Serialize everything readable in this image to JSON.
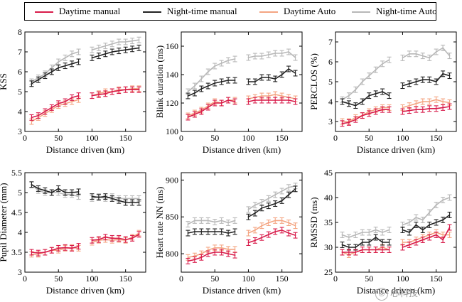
{
  "legend": {
    "items": [
      {
        "label": "Daytime manual",
        "color": "#d81b4a"
      },
      {
        "label": "Night-time manual",
        "color": "#222222"
      },
      {
        "label": "Daytime Auto",
        "color": "#f4a582"
      },
      {
        "label": "Night-time Auto",
        "color": "#b8b8b8"
      }
    ]
  },
  "watermark": {
    "text": "心科技",
    "icon": "wechat-icon"
  },
  "chart_data": [
    {
      "type": "line",
      "title": "",
      "xlabel": "Distance driven (km)",
      "ylabel": "KSS",
      "xlim": [
        0,
        180
      ],
      "ylim": [
        3,
        8
      ],
      "xticks": [
        0,
        50,
        100,
        150
      ],
      "yticks": [
        3,
        4,
        5,
        6,
        7,
        8
      ],
      "series": [
        {
          "name": "Daytime manual",
          "color": "#d81b4a",
          "x": [
            10,
            20,
            30,
            40,
            50,
            60,
            70,
            80,
            100,
            110,
            120,
            130,
            140,
            150,
            160,
            170
          ],
          "y": [
            3.7,
            3.8,
            4.0,
            4.2,
            4.4,
            4.5,
            4.7,
            4.8,
            4.8,
            4.85,
            4.9,
            5.0,
            5.05,
            5.1,
            5.1,
            5.1
          ]
        },
        {
          "name": "Night-time manual",
          "color": "#222222",
          "x": [
            10,
            20,
            30,
            40,
            50,
            60,
            70,
            80,
            100,
            110,
            120,
            130,
            140,
            150,
            160,
            170
          ],
          "y": [
            5.4,
            5.6,
            5.8,
            6.0,
            6.2,
            6.3,
            6.4,
            6.5,
            6.7,
            6.8,
            6.9,
            7.0,
            7.05,
            7.1,
            7.15,
            7.2
          ]
        },
        {
          "name": "Daytime Auto",
          "color": "#f4a582",
          "x": [
            10,
            20,
            30,
            40,
            50,
            60,
            70,
            80,
            100,
            110,
            120,
            130,
            140,
            150,
            160,
            170
          ],
          "y": [
            3.5,
            3.7,
            3.9,
            4.1,
            4.3,
            4.4,
            4.5,
            4.6,
            4.8,
            4.9,
            5.0,
            5.0,
            5.1,
            5.1,
            5.15,
            5.15
          ]
        },
        {
          "name": "Night-time Auto",
          "color": "#b8b8b8",
          "x": [
            10,
            20,
            30,
            40,
            50,
            60,
            70,
            80,
            100,
            110,
            120,
            130,
            140,
            150,
            160,
            170
          ],
          "y": [
            5.5,
            5.7,
            5.9,
            6.2,
            6.5,
            6.7,
            6.9,
            7.0,
            7.1,
            7.2,
            7.3,
            7.4,
            7.5,
            7.5,
            7.55,
            7.6
          ]
        }
      ]
    },
    {
      "type": "line",
      "title": "",
      "xlabel": "Distance driven (km)",
      "ylabel": "Blink duration (ms)",
      "xlim": [
        0,
        180
      ],
      "ylim": [
        100,
        170
      ],
      "xticks": [
        0,
        50,
        100,
        150
      ],
      "yticks": [
        100,
        120,
        140,
        160
      ],
      "series": [
        {
          "name": "Daytime manual",
          "color": "#d81b4a",
          "x": [
            10,
            20,
            30,
            40,
            50,
            60,
            70,
            80,
            100,
            110,
            120,
            130,
            140,
            150,
            160,
            170
          ],
          "y": [
            110,
            112,
            114,
            117,
            120,
            120,
            122,
            121,
            121,
            122,
            122,
            122,
            122,
            122,
            122,
            121
          ]
        },
        {
          "name": "Night-time manual",
          "color": "#222222",
          "x": [
            10,
            20,
            30,
            40,
            50,
            60,
            70,
            80,
            100,
            110,
            120,
            130,
            140,
            150,
            160,
            170
          ],
          "y": [
            125,
            127,
            130,
            132,
            134,
            135,
            136,
            136,
            135,
            135,
            138,
            138,
            137,
            140,
            144,
            141
          ]
        },
        {
          "name": "Daytime Auto",
          "color": "#f4a582",
          "x": [
            10,
            20,
            30,
            40,
            50,
            60,
            70,
            80,
            100,
            110,
            120,
            130,
            140,
            150,
            160,
            170
          ],
          "y": [
            111,
            113,
            115,
            118,
            121,
            120,
            122,
            122,
            123,
            124,
            125,
            125,
            126,
            125,
            124,
            123
          ]
        },
        {
          "name": "Night-time Auto",
          "color": "#b8b8b8",
          "x": [
            10,
            20,
            30,
            40,
            50,
            60,
            70,
            80,
            100,
            110,
            120,
            130,
            140,
            150,
            160,
            170
          ],
          "y": [
            128,
            132,
            137,
            142,
            146,
            148,
            150,
            151,
            152,
            153,
            153,
            154,
            155,
            155,
            156,
            152
          ]
        }
      ]
    },
    {
      "type": "line",
      "title": "",
      "xlabel": "Distance driven (km)",
      "ylabel": "PERCLOS (%)",
      "xlim": [
        0,
        180
      ],
      "ylim": [
        2.5,
        7.5
      ],
      "xticks": [
        0,
        50,
        100,
        150
      ],
      "yticks": [
        3,
        4,
        5,
        6,
        7
      ],
      "series": [
        {
          "name": "Daytime manual",
          "color": "#d81b4a",
          "x": [
            10,
            20,
            30,
            40,
            50,
            60,
            70,
            80,
            100,
            110,
            120,
            130,
            140,
            150,
            160,
            170
          ],
          "y": [
            2.9,
            2.95,
            3.1,
            3.3,
            3.4,
            3.5,
            3.6,
            3.6,
            3.5,
            3.55,
            3.6,
            3.6,
            3.65,
            3.65,
            3.7,
            3.75
          ]
        },
        {
          "name": "Night-time manual",
          "color": "#222222",
          "x": [
            10,
            20,
            30,
            40,
            50,
            60,
            70,
            80,
            100,
            110,
            120,
            130,
            140,
            150,
            160,
            170
          ],
          "y": [
            4.0,
            3.9,
            3.8,
            4.0,
            4.3,
            4.4,
            4.5,
            4.3,
            4.8,
            4.9,
            5.0,
            5.1,
            5.1,
            5.0,
            5.4,
            5.3
          ]
        },
        {
          "name": "Daytime Auto",
          "color": "#f4a582",
          "x": [
            10,
            20,
            30,
            40,
            50,
            60,
            70,
            80,
            100,
            110,
            120,
            130,
            140,
            150,
            160,
            170
          ],
          "y": [
            3.0,
            3.0,
            3.2,
            3.3,
            3.5,
            3.6,
            3.7,
            3.7,
            3.7,
            3.8,
            3.9,
            4.0,
            4.0,
            4.1,
            4.0,
            3.95
          ]
        },
        {
          "name": "Night-time Auto",
          "color": "#b8b8b8",
          "x": [
            10,
            20,
            30,
            40,
            50,
            60,
            70,
            80,
            100,
            110,
            120,
            130,
            140,
            150,
            160,
            170
          ],
          "y": [
            4.1,
            4.3,
            4.6,
            5.0,
            5.3,
            5.6,
            5.9,
            6.1,
            6.2,
            6.4,
            6.4,
            6.3,
            6.2,
            6.5,
            6.7,
            6.3
          ]
        }
      ]
    },
    {
      "type": "line",
      "title": "",
      "xlabel": "Distance driven (km)",
      "ylabel": "Pupil Diameter (mm)",
      "xlim": [
        0,
        180
      ],
      "ylim": [
        3.0,
        5.5
      ],
      "xticks": [
        0,
        50,
        100,
        150
      ],
      "yticks": [
        3,
        3.5,
        4,
        4.5,
        5,
        5.5
      ],
      "series": [
        {
          "name": "Daytime manual",
          "color": "#d81b4a",
          "x": [
            10,
            20,
            30,
            40,
            50,
            60,
            70,
            80,
            100,
            110,
            120,
            130,
            140,
            150,
            160,
            170
          ],
          "y": [
            3.5,
            3.48,
            3.5,
            3.55,
            3.6,
            3.62,
            3.6,
            3.65,
            3.8,
            3.82,
            3.88,
            3.85,
            3.85,
            3.82,
            3.85,
            3.95
          ]
        },
        {
          "name": "Night-time manual",
          "color": "#222222",
          "x": [
            10,
            20,
            30,
            40,
            50,
            60,
            70,
            80,
            100,
            110,
            120,
            130,
            140,
            150,
            160,
            170
          ],
          "y": [
            5.2,
            5.1,
            5.05,
            5.0,
            5.1,
            5.0,
            5.0,
            5.02,
            4.9,
            4.88,
            4.9,
            4.85,
            4.8,
            4.75,
            4.75,
            4.75
          ]
        },
        {
          "name": "Daytime Auto",
          "color": "#f4a582",
          "x": [
            10,
            20,
            30,
            40,
            50,
            60,
            70,
            80,
            100,
            110,
            120,
            130,
            140,
            150,
            160,
            170
          ],
          "y": [
            3.45,
            3.45,
            3.5,
            3.55,
            3.55,
            3.6,
            3.62,
            3.6,
            3.75,
            3.8,
            3.82,
            3.8,
            3.82,
            3.8,
            3.88,
            3.98
          ]
        },
        {
          "name": "Night-time Auto",
          "color": "#b8b8b8",
          "x": [
            10,
            20,
            30,
            40,
            50,
            60,
            70,
            80,
            100,
            110,
            120,
            130,
            140,
            150,
            160,
            170
          ],
          "y": [
            5.2,
            5.05,
            5.0,
            5.0,
            5.0,
            4.95,
            4.95,
            4.9,
            4.85,
            4.9,
            4.85,
            4.9,
            4.85,
            4.85,
            4.85,
            4.85
          ]
        }
      ]
    },
    {
      "type": "line",
      "title": "",
      "xlabel": "Distance driven (km)",
      "ylabel": "Heart rate NN (ms)",
      "xlim": [
        0,
        180
      ],
      "ylim": [
        775,
        910
      ],
      "xticks": [
        0,
        50,
        100,
        150
      ],
      "yticks": [
        800,
        850,
        900
      ],
      "series": [
        {
          "name": "Daytime manual",
          "color": "#d81b4a",
          "x": [
            10,
            20,
            30,
            40,
            50,
            60,
            70,
            80,
            100,
            110,
            120,
            130,
            140,
            150,
            160,
            170
          ],
          "y": [
            790,
            792,
            795,
            800,
            802,
            802,
            800,
            798,
            815,
            818,
            822,
            826,
            830,
            832,
            828,
            825
          ]
        },
        {
          "name": "Night-time manual",
          "color": "#222222",
          "x": [
            10,
            20,
            30,
            40,
            50,
            60,
            70,
            80,
            100,
            110,
            120,
            130,
            140,
            150,
            160,
            170
          ],
          "y": [
            828,
            830,
            830,
            830,
            830,
            830,
            828,
            830,
            850,
            855,
            862,
            865,
            868,
            872,
            880,
            888
          ]
        },
        {
          "name": "Daytime Auto",
          "color": "#f4a582",
          "x": [
            10,
            20,
            30,
            40,
            50,
            60,
            70,
            80,
            100,
            110,
            120,
            130,
            140,
            150,
            160,
            170
          ],
          "y": [
            795,
            797,
            800,
            805,
            808,
            808,
            806,
            806,
            828,
            832,
            838,
            842,
            845,
            845,
            842,
            838
          ]
        },
        {
          "name": "Night-time Auto",
          "color": "#b8b8b8",
          "x": [
            10,
            20,
            30,
            40,
            50,
            60,
            70,
            80,
            100,
            110,
            120,
            130,
            140,
            150,
            160,
            170
          ],
          "y": [
            840,
            845,
            845,
            845,
            843,
            845,
            842,
            845,
            860,
            866,
            870,
            875,
            880,
            885,
            890,
            892
          ]
        }
      ]
    },
    {
      "type": "line",
      "title": "",
      "xlabel": "Distance driven (km)",
      "ylabel": "RMSSD (ms)",
      "xlim": [
        0,
        180
      ],
      "ylim": [
        25,
        45
      ],
      "xticks": [
        0,
        50,
        100,
        150
      ],
      "yticks": [
        25,
        30,
        35,
        40,
        45
      ],
      "series": [
        {
          "name": "Daytime manual",
          "color": "#d81b4a",
          "x": [
            10,
            20,
            30,
            40,
            50,
            60,
            70,
            80,
            100,
            110,
            120,
            130,
            140,
            150,
            160,
            170
          ],
          "y": [
            29.0,
            29.0,
            29.0,
            29.5,
            29.5,
            29.5,
            29.5,
            29.5,
            30.0,
            30.5,
            31.0,
            31.5,
            32.0,
            32.5,
            31.5,
            34.0
          ]
        },
        {
          "name": "Night-time manual",
          "color": "#222222",
          "x": [
            10,
            20,
            30,
            40,
            50,
            60,
            70,
            80,
            100,
            110,
            120,
            130,
            140,
            150,
            160,
            170
          ],
          "y": [
            30.5,
            30.0,
            30.0,
            31.0,
            31.0,
            32.0,
            31.0,
            31.0,
            33.5,
            33.0,
            34.5,
            33.5,
            34.5,
            35.0,
            35.5,
            36.5
          ]
        },
        {
          "name": "Daytime Auto",
          "color": "#f4a582",
          "x": [
            10,
            20,
            30,
            40,
            50,
            60,
            70,
            80,
            100,
            110,
            120,
            130,
            140,
            150,
            160,
            170
          ],
          "y": [
            29.0,
            28.5,
            29.0,
            29.5,
            29.5,
            29.5,
            30.0,
            29.5,
            31.0,
            31.0,
            31.5,
            32.0,
            32.5,
            33.0,
            32.5,
            32.5
          ]
        },
        {
          "name": "Night-time Auto",
          "color": "#b8b8b8",
          "x": [
            10,
            20,
            30,
            40,
            50,
            60,
            70,
            80,
            100,
            110,
            120,
            130,
            140,
            150,
            160,
            170
          ],
          "y": [
            32.5,
            32.0,
            32.5,
            33.0,
            33.0,
            33.5,
            33.0,
            33.5,
            34.5,
            35.0,
            36.0,
            35.5,
            37.0,
            38.5,
            39.5,
            40.0
          ]
        }
      ]
    }
  ]
}
